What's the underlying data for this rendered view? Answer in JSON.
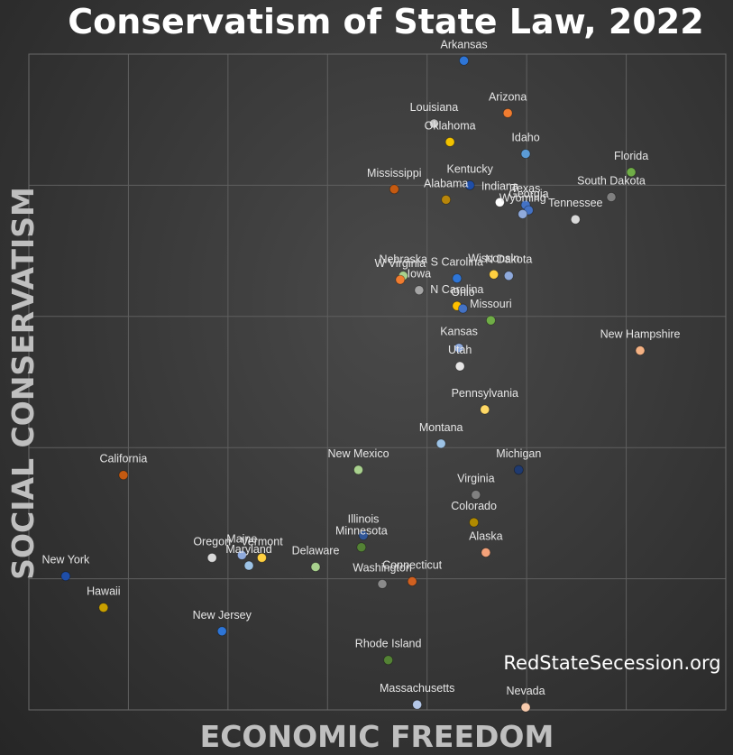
{
  "chart_data": {
    "type": "scatter",
    "title": "Conservatism of State Law, 2022",
    "xlabel": "ECONOMIC FREEDOM",
    "ylabel": "SOCIAL CONSERVATISM",
    "watermark": "RedStateSecession.org",
    "xlim": [
      0,
      7
    ],
    "ylim": [
      0,
      5
    ],
    "grid": true,
    "points": [
      {
        "label": "Arkansas",
        "x": 4.37,
        "y": 4.95,
        "color": "#2e75d6"
      },
      {
        "label": "Arizona",
        "x": 4.81,
        "y": 4.55,
        "color": "#f07c30"
      },
      {
        "label": "Louisiana",
        "x": 4.07,
        "y": 4.47,
        "color": "#bfbfbf"
      },
      {
        "label": "Oklahoma",
        "x": 4.23,
        "y": 4.33,
        "color": "#f2c200"
      },
      {
        "label": "Idaho",
        "x": 4.99,
        "y": 4.24,
        "color": "#5b9bd5"
      },
      {
        "label": "Florida",
        "x": 6.05,
        "y": 4.1,
        "color": "#70ad47"
      },
      {
        "label": "Kentucky",
        "x": 4.43,
        "y": 4.0,
        "color": "#1f4ea8"
      },
      {
        "label": "Mississippi",
        "x": 3.67,
        "y": 3.97,
        "color": "#c55a11"
      },
      {
        "label": "Alabama",
        "x": 4.19,
        "y": 3.89,
        "color": "#b8860b"
      },
      {
        "label": "Indiana",
        "x": 4.73,
        "y": 3.87,
        "color": "#ffffff"
      },
      {
        "label": "Texas",
        "x": 4.99,
        "y": 3.85,
        "color": "#4472c4"
      },
      {
        "label": "Georgia",
        "x": 5.02,
        "y": 3.81,
        "color": "#4472c4"
      },
      {
        "label": "South Dakota",
        "x": 5.85,
        "y": 3.91,
        "color": "#7f7f7f"
      },
      {
        "label": "Wyoming",
        "x": 4.96,
        "y": 3.78,
        "color": "#8faadc"
      },
      {
        "label": "Tennessee",
        "x": 5.49,
        "y": 3.74,
        "color": "#d9d9d9"
      },
      {
        "label": "Nebraska",
        "x": 3.76,
        "y": 3.31,
        "color": "#a9d18e"
      },
      {
        "label": "W Virginia",
        "x": 3.73,
        "y": 3.28,
        "color": "#f07c30"
      },
      {
        "label": "Iowa",
        "x": 3.92,
        "y": 3.2,
        "color": "#a5a5a5"
      },
      {
        "label": "S Carolina",
        "x": 4.3,
        "y": 3.29,
        "color": "#2e75d6"
      },
      {
        "label": "Wisconsin",
        "x": 4.67,
        "y": 3.32,
        "color": "#ffd040"
      },
      {
        "label": "N Dakota",
        "x": 4.82,
        "y": 3.31,
        "color": "#8faadc"
      },
      {
        "label": "N Carolina",
        "x": 4.3,
        "y": 3.08,
        "color": "#ffc000"
      },
      {
        "label": "Ohio",
        "x": 4.36,
        "y": 3.06,
        "color": "#4472c4"
      },
      {
        "label": "Missouri",
        "x": 4.64,
        "y": 2.97,
        "color": "#70ad47"
      },
      {
        "label": "Kansas",
        "x": 4.32,
        "y": 2.76,
        "color": "#8faadc"
      },
      {
        "label": "Utah",
        "x": 4.33,
        "y": 2.62,
        "color": "#e7e6e6"
      },
      {
        "label": "New Hampshire",
        "x": 6.14,
        "y": 2.74,
        "color": "#f4b183"
      },
      {
        "label": "Pennsylvania",
        "x": 4.58,
        "y": 2.29,
        "color": "#ffd966"
      },
      {
        "label": "Montana",
        "x": 4.14,
        "y": 2.03,
        "color": "#9dc3e6"
      },
      {
        "label": "New Mexico",
        "x": 3.31,
        "y": 1.83,
        "color": "#a9d18e"
      },
      {
        "label": "Michigan",
        "x": 4.92,
        "y": 1.83,
        "color": "#1f3a70"
      },
      {
        "label": "Virginia",
        "x": 4.49,
        "y": 1.64,
        "color": "#808080"
      },
      {
        "label": "Colorado",
        "x": 4.47,
        "y": 1.43,
        "color": "#b08a00"
      },
      {
        "label": "Alaska",
        "x": 4.59,
        "y": 1.2,
        "color": "#f4a27a"
      },
      {
        "label": "California",
        "x": 0.95,
        "y": 1.79,
        "color": "#c55a11"
      },
      {
        "label": "Illinois",
        "x": 3.36,
        "y": 1.33,
        "color": "#2f5597"
      },
      {
        "label": "Minnesota",
        "x": 3.34,
        "y": 1.24,
        "color": "#548235"
      },
      {
        "label": "Oregon",
        "x": 1.84,
        "y": 1.16,
        "color": "#d9d9d9"
      },
      {
        "label": "Maine",
        "x": 2.14,
        "y": 1.18,
        "color": "#8faadc"
      },
      {
        "label": "Vermont",
        "x": 2.34,
        "y": 1.16,
        "color": "#ffd040"
      },
      {
        "label": "Maryland",
        "x": 2.21,
        "y": 1.1,
        "color": "#9dc3e6"
      },
      {
        "label": "Delaware",
        "x": 2.88,
        "y": 1.09,
        "color": "#a9d18e"
      },
      {
        "label": "Washington",
        "x": 3.55,
        "y": 0.96,
        "color": "#8a8a8a"
      },
      {
        "label": "Connecticut",
        "x": 3.85,
        "y": 0.98,
        "color": "#d06020"
      },
      {
        "label": "New York",
        "x": 0.37,
        "y": 1.02,
        "color": "#1f4ea8"
      },
      {
        "label": "Hawaii",
        "x": 0.75,
        "y": 0.78,
        "color": "#c9a000"
      },
      {
        "label": "New Jersey",
        "x": 1.94,
        "y": 0.6,
        "color": "#2e75d6"
      },
      {
        "label": "Rhode Island",
        "x": 3.61,
        "y": 0.38,
        "color": "#548235"
      },
      {
        "label": "Massachusetts",
        "x": 3.9,
        "y": 0.04,
        "color": "#b4c7e7"
      },
      {
        "label": "Nevada",
        "x": 4.99,
        "y": 0.02,
        "color": "#f8cbad"
      }
    ]
  }
}
